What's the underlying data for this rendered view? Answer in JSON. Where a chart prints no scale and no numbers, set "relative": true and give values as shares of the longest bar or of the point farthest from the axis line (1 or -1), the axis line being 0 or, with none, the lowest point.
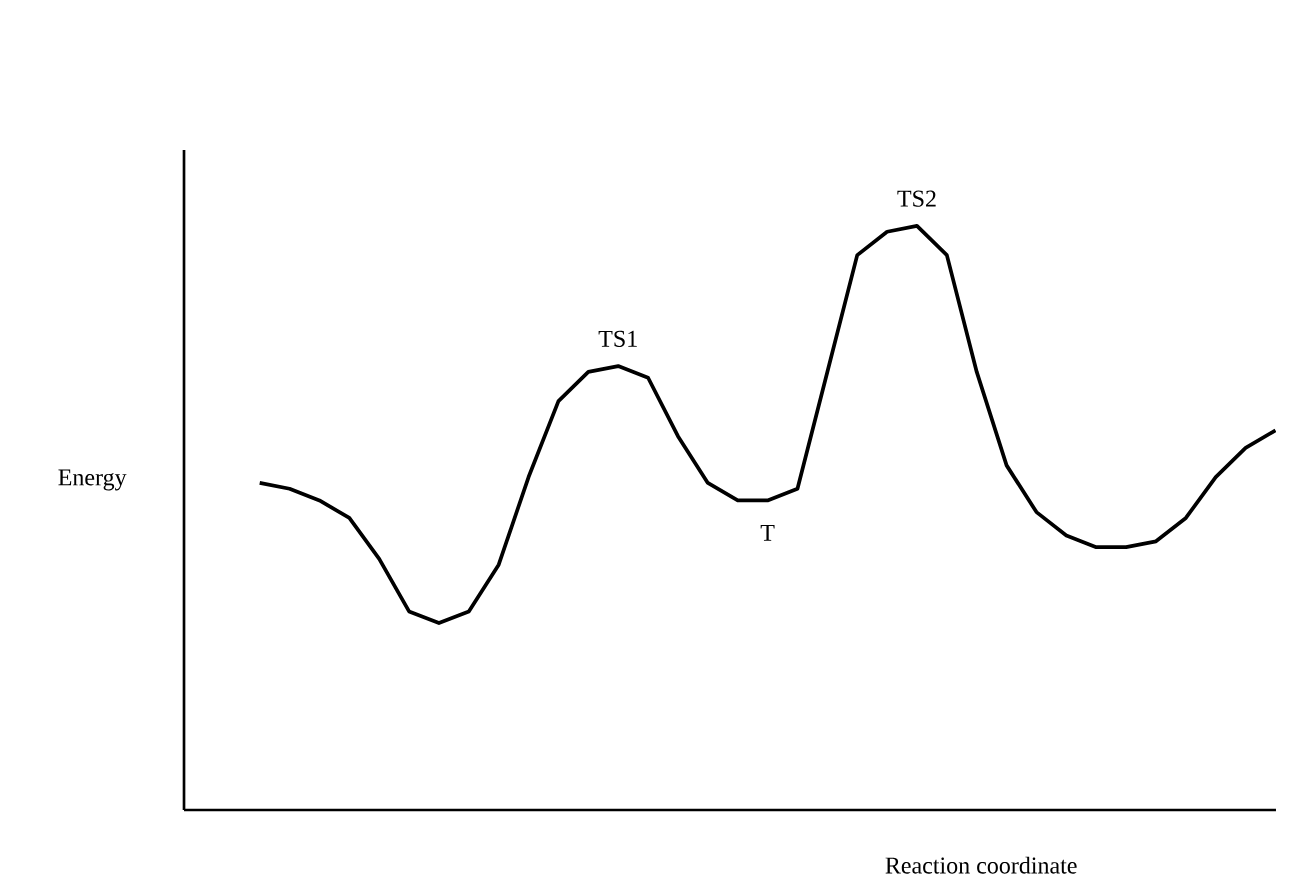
{
  "chart_data": {
    "type": "line",
    "relative": true,
    "xlabel": "Reaction coordinate",
    "ylabel": "Energy",
    "annotations": [
      "TS1",
      "TS2",
      "T"
    ],
    "categories": [
      null,
      null,
      null,
      null,
      null,
      null,
      null,
      null,
      null,
      null,
      null,
      null,
      null,
      null,
      null,
      null,
      null,
      null,
      null,
      null,
      null,
      null,
      null,
      null,
      null,
      null,
      null,
      null,
      null,
      null,
      null,
      null,
      null,
      null,
      null
    ],
    "color": "#000000",
    "marker": "none",
    "line_style": "solid",
    "values": [
      0.56,
      0.55,
      0.53,
      0.5,
      0.43,
      0.34,
      0.32,
      0.34,
      0.42,
      0.57,
      0.7,
      0.75,
      0.76,
      0.74,
      0.64,
      0.56,
      0.53,
      0.53,
      0.55,
      0.75,
      0.95,
      0.99,
      1.0,
      0.95,
      0.75,
      0.59,
      0.51,
      0.47,
      0.45,
      0.45,
      0.46,
      0.5,
      0.57,
      0.62,
      0.65
    ]
  }
}
